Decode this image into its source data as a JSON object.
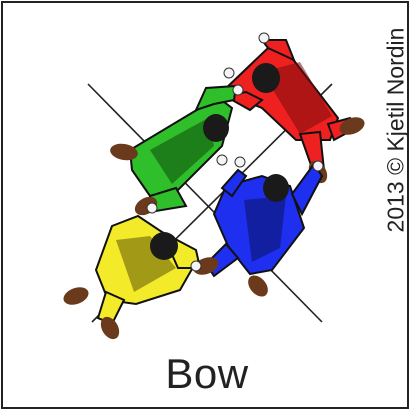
{
  "title": "Bow",
  "credit": "2013 © Kjetil Nordin",
  "jumpers": [
    {
      "name": "red",
      "color": "#ef2020"
    },
    {
      "name": "green",
      "color": "#2fbf2a"
    },
    {
      "name": "blue",
      "color": "#1f2ff0"
    },
    {
      "name": "yellow",
      "color": "#f3ea2a"
    }
  ],
  "palette": {
    "dark": "#1a1a1a",
    "boot": "#6b3a1c",
    "glove": "#f4f4f4"
  }
}
